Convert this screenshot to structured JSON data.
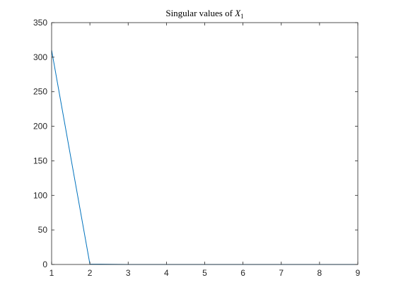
{
  "chart_data": {
    "type": "line",
    "title": {
      "prefix": "Singular values of ",
      "variable": "X",
      "subscript": "1"
    },
    "xlabel": "",
    "ylabel": "",
    "xlim": [
      1,
      9
    ],
    "ylim": [
      0,
      350
    ],
    "x_ticks": [
      1,
      2,
      3,
      4,
      5,
      6,
      7,
      8,
      9
    ],
    "y_ticks": [
      0,
      50,
      100,
      150,
      200,
      250,
      300,
      350
    ],
    "grid": false,
    "legend": "none",
    "series": [
      {
        "x": [
          1,
          2,
          3,
          4,
          5,
          6,
          7,
          8,
          9
        ],
        "values": [
          310,
          0.5,
          0,
          0,
          0,
          0,
          0,
          0,
          0
        ],
        "color": "#0072BD"
      }
    ]
  }
}
